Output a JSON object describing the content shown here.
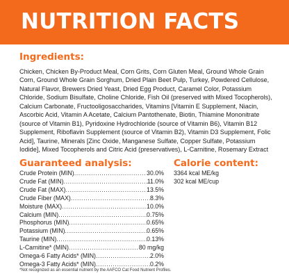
{
  "header": {
    "title": "NUTRITION FACTS"
  },
  "ingredients": {
    "heading": "Ingredients:",
    "text": "Chicken, Chicken By-Product Meal, Corn Grits, Corn Gluten Meal, Ground Whole Grain Corn, Ground Whole Grain Sorghum, Dried Plain Beet Pulp, Turkey, Powdered Cellulose, Natural Flavor, Brewers Dried Yeast, Dried Egg Product, Caramel Color, Potassium Chloride, Sodium Bisulfate, Choline Chloride, Fish Oil (preserved with Mixed Tocopherols), Calcium Carbonate, Fructooligosaccharides, Vitamins [Vitamin E Supplement, Niacin, Ascorbic Acid, Vitamin A Acetate, Calcium Pantothenate, Biotin, Thiamine Mononitrate (source of Vitamin B1), Pyridoxine Hydrochloride (source of Vitamin B6), Vitamin B12 Supplement, Riboflavin Supplement (source of Vitamin B2), Vitamin D3 Supplement, Folic Acid], Taurine, Minerals [Zinc Oxide, Manganese Sulfate, Copper Sulfate, Potassium Iodide], Mixed Tocopherols and Citric Acid (preservatives), L-Carnitine, Rosemary Extract"
  },
  "analysis": {
    "heading": "Guaranteed analysis:",
    "rows": [
      {
        "name": "Crude Protein (MIN)",
        "value": "30.0%"
      },
      {
        "name": "Crude Fat (MIN)",
        "value": "11.0%"
      },
      {
        "name": "Crude Fat (MAX)",
        "value": "13.5%"
      },
      {
        "name": "Crude Fiber (MAX)",
        "value": "8.3%"
      },
      {
        "name": "Moisture (MAX)",
        "value": "10.0%"
      },
      {
        "name": "Calcium (MIN)",
        "value": "0.75%"
      },
      {
        "name": "Phosphorus (MIN)",
        "value": "0.65%"
      },
      {
        "name": "Potassium (MIN)",
        "value": "0.65%"
      },
      {
        "name": "Taurine (MIN)",
        "value": "0.13%"
      },
      {
        "name": "L-Carnitine* (MIN)",
        "value": "80 mg/kg"
      },
      {
        "name": "Omega-6 Fatty Acids* (MIN)",
        "value": "2.0%"
      },
      {
        "name": "Omega-3 Fatty Acids* (MIN)",
        "value": "0.2%"
      }
    ]
  },
  "calories": {
    "heading": "Calorie content:",
    "items": [
      "3364 kcal ME/kg",
      "302 kcal ME/cup"
    ]
  },
  "footnote": "*Not recognized as an essential nutrient by the AAFCO Cat Food Nutrient Profiles.",
  "colors": {
    "accent": "#f46a1c",
    "text": "#222222",
    "background": "#ffffff"
  }
}
